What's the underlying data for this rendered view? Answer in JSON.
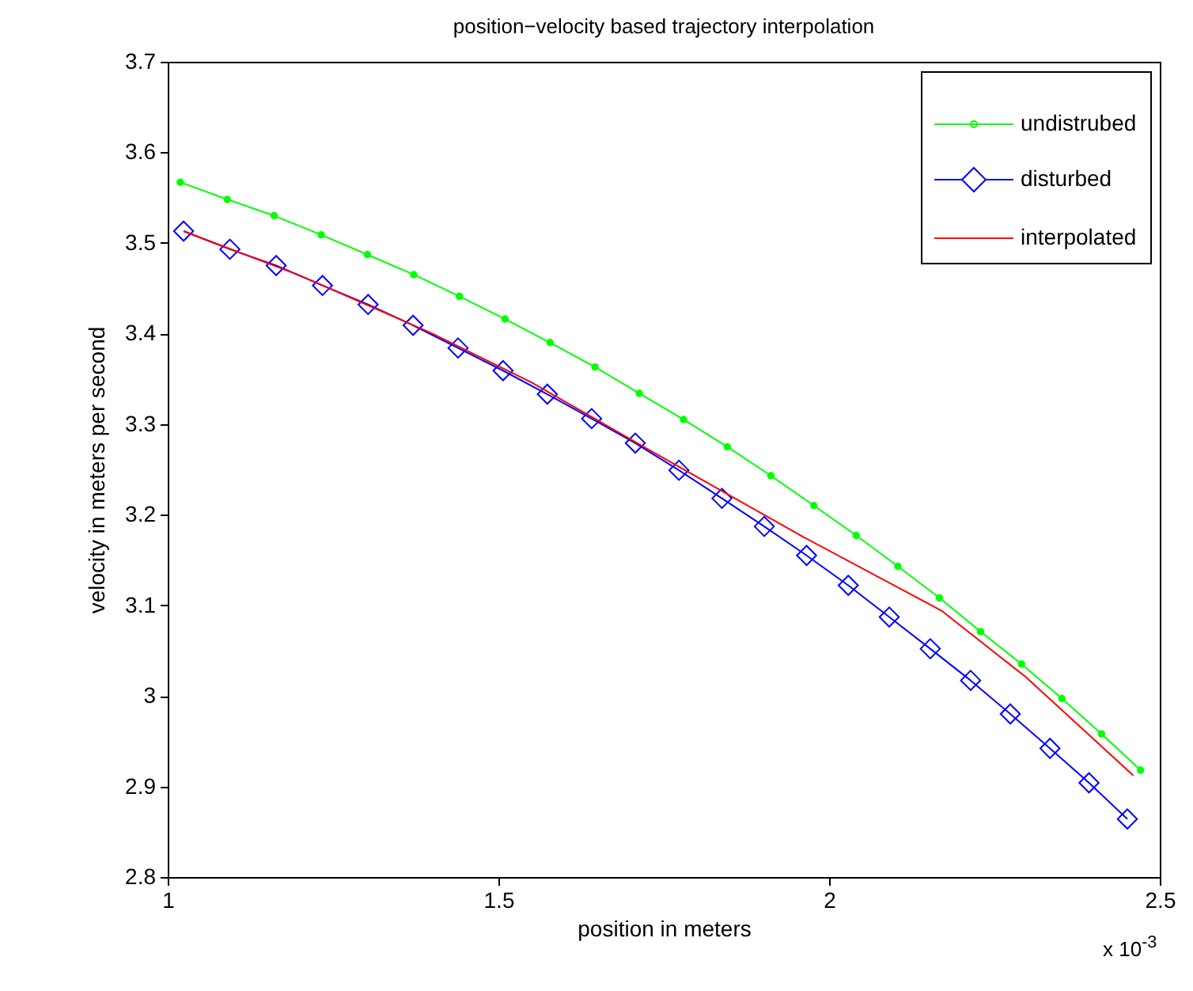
{
  "chart_data": {
    "type": "line",
    "title": "position−velocity based trajectory interpolation",
    "xlabel": "position in meters",
    "ylabel": "velocity in meters per second",
    "annotations": [
      "x 10$^{-3}$"
    ],
    "xlim": [
      1,
      2.5
    ],
    "xticks": [
      1,
      1.5,
      2,
      2.5
    ],
    "ylim": [
      2.8,
      3.7
    ],
    "yticks": [
      2.8,
      2.9,
      3,
      3.1,
      3.2,
      3.3,
      3.4,
      3.5,
      3.6,
      3.7
    ],
    "grid": false,
    "legend": "top right",
    "line_style": "solid",
    "series": [
      {
        "name": "undistrubed",
        "color": "#00ff00",
        "marker": "circle",
        "x": [
          1.019,
          1.09,
          1.161,
          1.232,
          1.302,
          1.372,
          1.441,
          1.51,
          1.578,
          1.646,
          1.713,
          1.78,
          1.846,
          1.912,
          1.977,
          2.041,
          2.104,
          2.167,
          2.229,
          2.291,
          2.352,
          2.412,
          2.471
        ],
        "values": [
          3.567,
          3.548,
          3.53,
          3.509,
          3.487,
          3.465,
          3.441,
          3.416,
          3.39,
          3.363,
          3.334,
          3.305,
          3.275,
          3.243,
          3.21,
          3.177,
          3.143,
          3.108,
          3.071,
          3.035,
          2.997,
          2.958,
          2.918
        ]
      },
      {
        "name": "disturbed",
        "color": "#0000ff",
        "marker": "diamond",
        "x": [
          1.024,
          1.094,
          1.164,
          1.234,
          1.303,
          1.371,
          1.439,
          1.507,
          1.574,
          1.641,
          1.707,
          1.773,
          1.838,
          1.902,
          1.966,
          2.029,
          2.091,
          2.153,
          2.214,
          2.274,
          2.334,
          2.393,
          2.451
        ],
        "values": [
          3.513,
          3.493,
          3.475,
          3.453,
          3.432,
          3.409,
          3.384,
          3.359,
          3.333,
          3.306,
          3.279,
          3.249,
          3.218,
          3.187,
          3.155,
          3.122,
          3.087,
          3.052,
          3.017,
          2.98,
          2.942,
          2.904,
          2.864
        ]
      },
      {
        "name": "interpolated",
        "color": "#ff0000",
        "marker": "none",
        "x": [
          1.024,
          1.2,
          1.4,
          1.55,
          1.722,
          1.962,
          2.17,
          2.297,
          2.46
        ],
        "values": [
          3.513,
          3.464,
          3.4,
          3.346,
          3.274,
          3.175,
          3.094,
          3.021,
          2.912
        ]
      }
    ]
  }
}
